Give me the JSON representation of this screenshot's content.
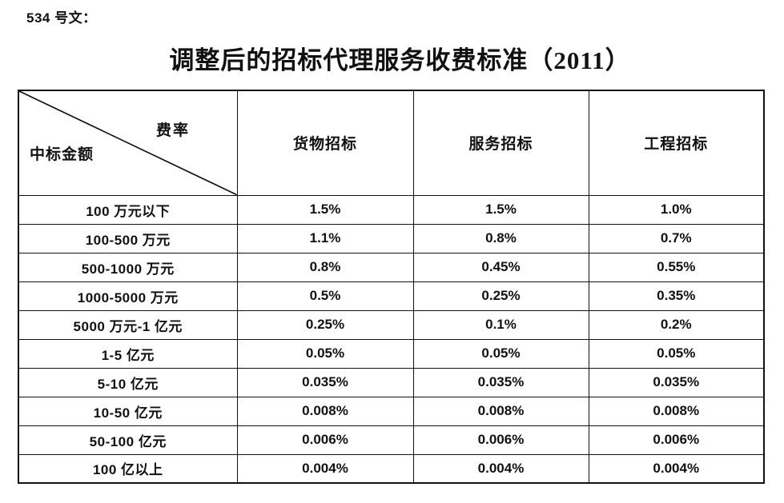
{
  "doc_label": "534 号文：",
  "title": "调整后的招标代理服务收费标准（2011）",
  "table": {
    "corner": {
      "rate_label": "费率",
      "amount_label": "中标金额"
    },
    "columns": [
      "货物招标",
      "服务招标",
      "工程招标"
    ],
    "rows": [
      {
        "label": "100 万元以下",
        "values": [
          "1.5%",
          "1.5%",
          "1.0%"
        ]
      },
      {
        "label": "100-500 万元",
        "values": [
          "1.1%",
          "0.8%",
          "0.7%"
        ]
      },
      {
        "label": "500-1000 万元",
        "values": [
          "0.8%",
          "0.45%",
          "0.55%"
        ]
      },
      {
        "label": "1000-5000 万元",
        "values": [
          "0.5%",
          "0.25%",
          "0.35%"
        ]
      },
      {
        "label": "5000 万元-1 亿元",
        "values": [
          "0.25%",
          "0.1%",
          "0.2%"
        ]
      },
      {
        "label": "1-5 亿元",
        "values": [
          "0.05%",
          "0.05%",
          "0.05%"
        ]
      },
      {
        "label": "5-10 亿元",
        "values": [
          "0.035%",
          "0.035%",
          "0.035%"
        ]
      },
      {
        "label": "10-50 亿元",
        "values": [
          "0.008%",
          "0.008%",
          "0.008%"
        ]
      },
      {
        "label": "50-100 亿元",
        "values": [
          "0.006%",
          "0.006%",
          "0.006%"
        ]
      },
      {
        "label": "100 亿以上",
        "values": [
          "0.004%",
          "0.004%",
          "0.004%"
        ]
      }
    ]
  },
  "colors": {
    "text": "#111111",
    "border": "#111111",
    "background": "#ffffff"
  }
}
